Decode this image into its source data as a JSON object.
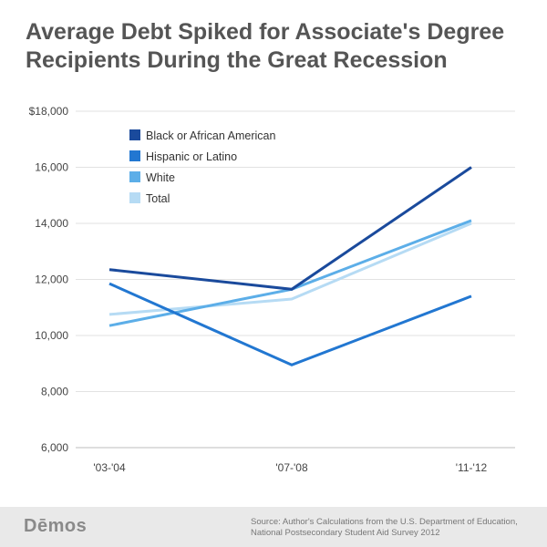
{
  "title": "Average Debt Spiked for Associate's Degree Recipients During the Great Recession",
  "footer": {
    "logo": "Dēmos",
    "source_line1": "Source: Author's Calculations from the U.S. Department of Education,",
    "source_line2": "National Postsecondary Student Aid Survey 2012"
  },
  "chart_data": {
    "type": "line",
    "title": "Average Debt Spiked for Associate's Degree Recipients During the Great Recession",
    "xlabel": "",
    "ylabel": "",
    "categories": [
      "'03-'04",
      "'07-'08",
      "'11-'12"
    ],
    "ylim": [
      6000,
      18000
    ],
    "yticks": [
      6000,
      8000,
      10000,
      12000,
      14000,
      16000,
      18000
    ],
    "ytick_labels": [
      "6,000",
      "8,000",
      "10,000",
      "12,000",
      "14,000",
      "16,000",
      "$18,000"
    ],
    "grid": true,
    "legend_position": "top-left",
    "series": [
      {
        "name": "Black or African American",
        "color": "#1a4a9c",
        "values": [
          12350,
          11650,
          16000
        ]
      },
      {
        "name": "Hispanic or Latino",
        "color": "#2277d1",
        "values": [
          11850,
          8950,
          11400
        ]
      },
      {
        "name": "White",
        "color": "#5caee8",
        "values": [
          10350,
          11650,
          14100
        ]
      },
      {
        "name": "Total",
        "color": "#b6dbf4",
        "values": [
          10750,
          11300,
          14000
        ]
      }
    ]
  }
}
